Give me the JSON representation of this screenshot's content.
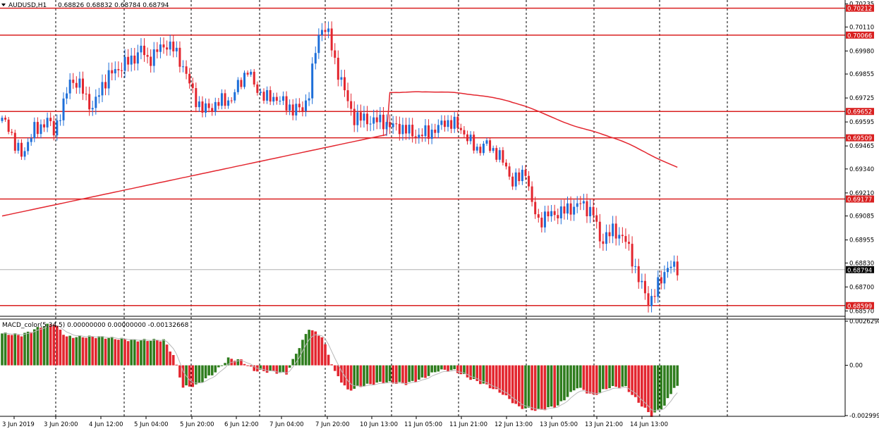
{
  "header": {
    "symbol": "AUDUSD,H1",
    "ohlc": "0.68826 0.68832 0.68784 0.68794"
  },
  "macd_header": {
    "title": "MACD_color(5,34,5) 0.00000000 0.00000000 -0.00132668"
  },
  "colors": {
    "bull": "#1e6fd9",
    "bear": "#e3262f",
    "level": "#d92020",
    "ma": "#e3262f",
    "hist_up": "#2f7d1e",
    "hist_down": "#e3262f",
    "signal": "#b8b8b8",
    "grid": "#000000"
  },
  "chart_data": [
    {
      "type": "candlestick",
      "symbol": "AUDUSD",
      "timeframe": "H1",
      "y_ticks": [
        "0.70235",
        "0.70110",
        "0.69980",
        "0.69855",
        "0.69725",
        "0.69595",
        "0.69465",
        "0.69340",
        "0.69210",
        "0.69085",
        "0.68955",
        "0.68830",
        "0.68700",
        "0.68570"
      ],
      "ylim": [
        0.6856,
        0.70245
      ],
      "x_ticks": [
        "3 Jun 2019",
        "3 Jun 20:00",
        "4 Jun 12:00",
        "5 Jun 04:00",
        "5 Jun 20:00",
        "6 Jun 12:00",
        "7 Jun 04:00",
        "7 Jun 20:00",
        "10 Jun 13:00",
        "11 Jun 05:00",
        "11 Jun 21:00",
        "12 Jun 13:00",
        "13 Jun 05:00",
        "13 Jun 21:00",
        "14 Jun 13:00"
      ],
      "horizontal_levels": [
        "0.70212",
        "0.70066",
        "0.69652",
        "0.69509",
        "0.69177",
        "0.68599"
      ],
      "current_price": "0.68794",
      "price_path": [
        [
          0,
          0.696
        ],
        [
          2,
          0.6958
        ],
        [
          4,
          0.6946
        ],
        [
          6,
          0.6942
        ],
        [
          10,
          0.6955
        ],
        [
          14,
          0.696
        ],
        [
          16,
          0.6955
        ],
        [
          19,
          0.6968
        ],
        [
          21,
          0.6983
        ],
        [
          25,
          0.6977
        ],
        [
          28,
          0.6966
        ],
        [
          31,
          0.698
        ],
        [
          34,
          0.6986
        ],
        [
          37,
          0.699
        ],
        [
          40,
          0.6993
        ],
        [
          43,
          0.6999
        ],
        [
          45,
          0.6993
        ],
        [
          48,
          0.6998
        ],
        [
          51,
          0.7002
        ],
        [
          53,
          0.6999
        ],
        [
          56,
          0.699
        ],
        [
          59,
          0.6975
        ],
        [
          62,
          0.6966
        ],
        [
          64,
          0.6967
        ],
        [
          67,
          0.697
        ],
        [
          71,
          0.6972
        ],
        [
          74,
          0.6982
        ],
        [
          76,
          0.6988
        ],
        [
          78,
          0.6979
        ],
        [
          82,
          0.6972
        ],
        [
          85,
          0.6973
        ],
        [
          88,
          0.6968
        ],
        [
          90,
          0.6967
        ],
        [
          93,
          0.6966
        ],
        [
          95,
          0.6976
        ],
        [
          97,
          0.6998
        ],
        [
          99,
          0.7012
        ],
        [
          101,
          0.7007
        ],
        [
          103,
          0.6992
        ],
        [
          105,
          0.6982
        ],
        [
          107,
          0.697
        ],
        [
          109,
          0.6962
        ],
        [
          112,
          0.6961
        ],
        [
          115,
          0.696
        ],
        [
          118,
          0.696
        ],
        [
          120,
          0.6957
        ],
        [
          123,
          0.6957
        ],
        [
          126,
          0.6954
        ],
        [
          129,
          0.6952
        ],
        [
          132,
          0.6954
        ],
        [
          135,
          0.6956
        ],
        [
          137,
          0.696
        ],
        [
          140,
          0.6958
        ],
        [
          142,
          0.6956
        ],
        [
          145,
          0.6948
        ],
        [
          147,
          0.6945
        ],
        [
          150,
          0.6947
        ],
        [
          153,
          0.6943
        ],
        [
          156,
          0.6935
        ],
        [
          158,
          0.6927
        ],
        [
          160,
          0.6929
        ],
        [
          162,
          0.6934
        ],
        [
          164,
          0.6914
        ],
        [
          166,
          0.6906
        ],
        [
          168,
          0.6908
        ],
        [
          171,
          0.691
        ],
        [
          174,
          0.6911
        ],
        [
          176,
          0.6913
        ],
        [
          179,
          0.6915
        ],
        [
          181,
          0.6913
        ],
        [
          183,
          0.691
        ],
        [
          185,
          0.6895
        ],
        [
          187,
          0.6898
        ],
        [
          189,
          0.69
        ],
        [
          192,
          0.6898
        ],
        [
          194,
          0.689
        ],
        [
          196,
          0.688
        ],
        [
          198,
          0.687
        ],
        [
          200,
          0.6862
        ],
        [
          202,
          0.6867
        ],
        [
          204,
          0.6874
        ],
        [
          206,
          0.6882
        ],
        [
          209,
          0.6879
        ]
      ]
    },
    {
      "type": "bar",
      "name": "MACD_color(5,34,5)",
      "y_ticks": [
        "0.0026298",
        "0.00",
        "-0.002999"
      ],
      "ylim": [
        -0.003,
        0.00263
      ],
      "histogram_path": [
        [
          0,
          0.0019
        ],
        [
          6,
          0.0018
        ],
        [
          12,
          0.0023
        ],
        [
          16,
          0.0025
        ],
        [
          20,
          0.0017
        ],
        [
          30,
          0.0017
        ],
        [
          40,
          0.0015
        ],
        [
          50,
          0.0015
        ],
        [
          53,
          0.0006
        ],
        [
          56,
          -0.0013
        ],
        [
          60,
          -0.0012
        ],
        [
          66,
          -0.0004
        ],
        [
          70,
          0.0004
        ],
        [
          74,
          0.0003
        ],
        [
          78,
          -0.0003
        ],
        [
          84,
          -0.0004
        ],
        [
          88,
          -0.0005
        ],
        [
          92,
          0.0011
        ],
        [
          95,
          0.0022
        ],
        [
          99,
          0.0017
        ],
        [
          103,
          -0.0004
        ],
        [
          107,
          -0.0015
        ],
        [
          112,
          -0.0012
        ],
        [
          118,
          -0.001
        ],
        [
          125,
          -0.0011
        ],
        [
          130,
          -0.0008
        ],
        [
          135,
          -0.0003
        ],
        [
          140,
          -0.0003
        ],
        [
          145,
          -0.0008
        ],
        [
          150,
          -0.0012
        ],
        [
          155,
          -0.0017
        ],
        [
          160,
          -0.0025
        ],
        [
          166,
          -0.0027
        ],
        [
          172,
          -0.0024
        ],
        [
          178,
          -0.0013
        ],
        [
          183,
          -0.0018
        ],
        [
          188,
          -0.0013
        ],
        [
          193,
          -0.0013
        ],
        [
          197,
          -0.0022
        ],
        [
          201,
          -0.003
        ],
        [
          205,
          -0.0024
        ],
        [
          208,
          -0.0013
        ]
      ]
    }
  ]
}
